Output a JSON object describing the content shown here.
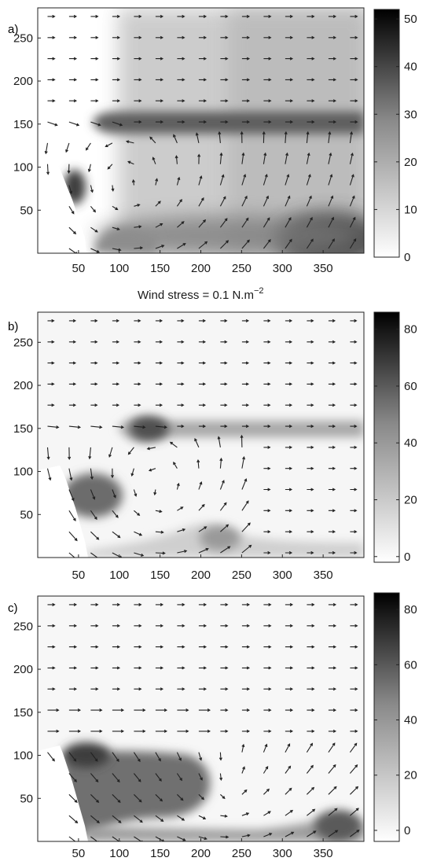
{
  "annotation": {
    "wind_label": "Wind stress = 0.1 N.m",
    "wind_exponent": "−2"
  },
  "chart_data": [
    {
      "type": "heatmap",
      "panel_label": "a)",
      "xlabel": "",
      "ylabel": "",
      "xlim": [
        0,
        400
      ],
      "ylim": [
        0,
        285
      ],
      "x_ticks": [
        50,
        100,
        150,
        200,
        250,
        300,
        350
      ],
      "y_ticks": [
        50,
        100,
        150,
        200,
        250
      ],
      "colorbar": {
        "min": 0,
        "max": 52,
        "ticks": [
          0,
          10,
          20,
          30,
          40,
          50
        ]
      },
      "overlay": "wind stress vectors",
      "colormap": "white-to-black grayscale"
    },
    {
      "type": "heatmap",
      "panel_label": "b)",
      "xlabel": "",
      "ylabel": "",
      "xlim": [
        0,
        400
      ],
      "ylim": [
        0,
        285
      ],
      "x_ticks": [
        50,
        100,
        150,
        200,
        250,
        300,
        350
      ],
      "y_ticks": [
        50,
        100,
        150,
        200,
        250
      ],
      "colorbar": {
        "min": -2,
        "max": 86,
        "ticks": [
          0,
          20,
          40,
          60,
          80
        ]
      },
      "overlay": "wind stress vectors",
      "colormap": "white-to-black grayscale"
    },
    {
      "type": "heatmap",
      "panel_label": "c)",
      "xlabel": "",
      "ylabel": "",
      "xlim": [
        0,
        400
      ],
      "ylim": [
        0,
        285
      ],
      "x_ticks": [
        50,
        100,
        150,
        200,
        250,
        300,
        350
      ],
      "y_ticks": [
        50,
        100,
        150,
        200,
        250
      ],
      "colorbar": {
        "min": -4,
        "max": 86,
        "ticks": [
          0,
          20,
          40,
          60,
          80
        ]
      },
      "overlay": "wind stress vectors",
      "colormap": "white-to-black grayscale"
    }
  ]
}
